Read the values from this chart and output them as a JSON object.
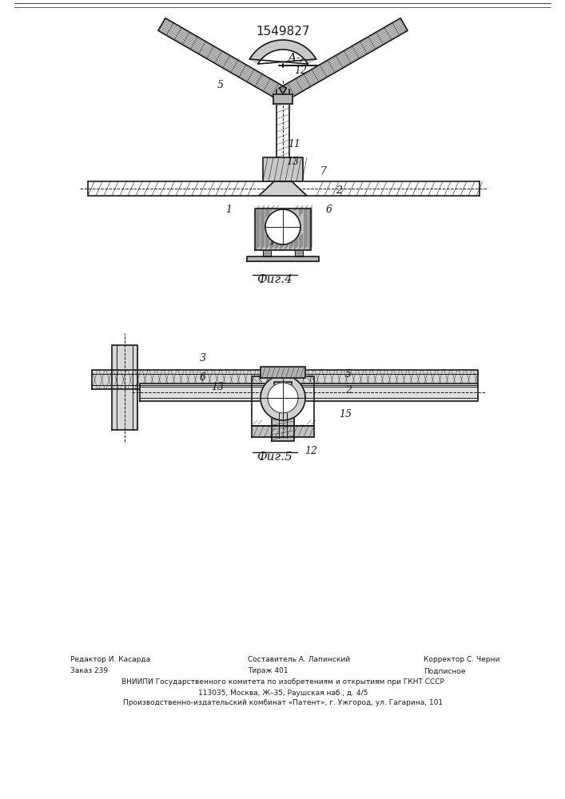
{
  "patent_number": "1549827",
  "fig4_label": "Фиг.4",
  "fig5_label": "Фиг.5",
  "section_label": "А-А",
  "footer_lines": [
    [
      "Редактор И. Касарда",
      "Составитель А. Лапинский",
      "Корректор С. Черни"
    ],
    [
      "Заказ 239",
      "Тираж 401",
      "Подписное"
    ],
    [
      "ВНИИПИ Государственного комитета по изобретениям и открытиям при ГКНТ СССР"
    ],
    [
      "113035, Москва, Ж–35, Раушская наб., д. 4/5"
    ],
    [
      "Производственно-издательский комбинат «Патент», г. Ужгород, ул. Гагарина, 101"
    ]
  ],
  "bg_color": "#ffffff",
  "line_color": "#1a1a1a",
  "hatch_color": "#333333"
}
